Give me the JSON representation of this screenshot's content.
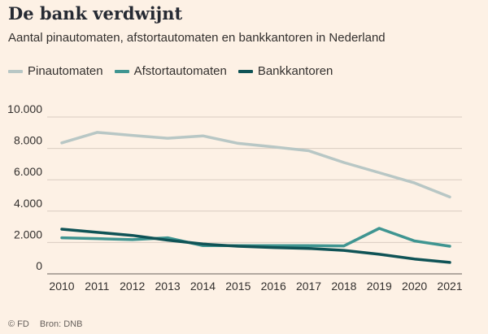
{
  "header": {
    "title": "De bank verdwijnt",
    "subtitle": "Aantal pinautomaten, afstortautomaten en bankkantoren in Nederland"
  },
  "footer": {
    "logo": "© FD",
    "source": "Bron: DNB"
  },
  "colors": {
    "background": "#fdf1e5",
    "grid": "#d9ccc1",
    "pinautomaten": "#b8c7c5",
    "afstortautomaten": "#3f9591",
    "bankkantoren": "#0f5356"
  },
  "chart_data": {
    "type": "line",
    "title": "De bank verdwijnt",
    "subtitle": "Aantal pinautomaten, afstortautomaten en bankkantoren in Nederland",
    "xlabel": "",
    "ylabel": "",
    "x": [
      2010,
      2011,
      2012,
      2013,
      2014,
      2015,
      2016,
      2017,
      2018,
      2019,
      2020,
      2021
    ],
    "ylim": [
      0,
      10000
    ],
    "yticks": [
      0,
      2000,
      4000,
      6000,
      8000,
      10000
    ],
    "ytick_labels": [
      "0",
      "2.000",
      "4.000",
      "6.000",
      "8.000",
      "10.000"
    ],
    "xtick_labels": [
      "2010",
      "2011",
      "2012",
      "2013",
      "2014",
      "2015",
      "2016",
      "2017",
      "2018",
      "2019",
      "2020",
      "2021"
    ],
    "grid": true,
    "legend_position": "top-left",
    "series": [
      {
        "name": "Pinautomaten",
        "color": "#b8c7c5",
        "values": [
          8350,
          9020,
          8830,
          8650,
          8800,
          8320,
          8100,
          7850,
          7100,
          6450,
          5800,
          4900
        ]
      },
      {
        "name": "Afstortautomaten",
        "color": "#3f9591",
        "values": [
          2300,
          2250,
          2180,
          2300,
          1800,
          1800,
          1800,
          1800,
          1780,
          2900,
          2100,
          1760
        ]
      },
      {
        "name": "Bankkantoren",
        "color": "#0f5356",
        "values": [
          2850,
          2650,
          2450,
          2150,
          1900,
          1760,
          1680,
          1620,
          1500,
          1250,
          950,
          730
        ]
      }
    ]
  }
}
